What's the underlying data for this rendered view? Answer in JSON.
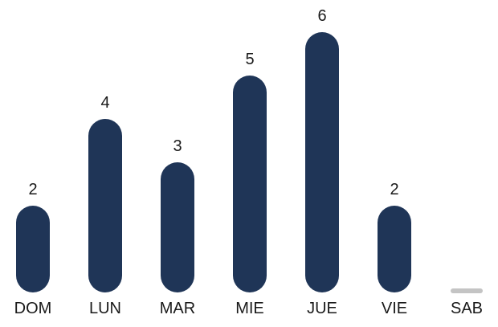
{
  "chart_data": {
    "type": "bar",
    "categories": [
      "DOM",
      "LUN",
      "MAR",
      "MIE",
      "JUE",
      "VIE",
      "SAB"
    ],
    "values": [
      2,
      4,
      3,
      5,
      6,
      2,
      0
    ],
    "value_labels": [
      "2",
      "4",
      "3",
      "5",
      "6",
      "2",
      ""
    ],
    "title": "",
    "xlabel": "",
    "ylabel": "",
    "ylim": [
      0,
      6
    ],
    "grid": false,
    "legend": "none",
    "bar_style": "rounded",
    "colors": {
      "bar": "#1f3557",
      "empty_bar": "#c4c4c4",
      "text": "#1a1a1a"
    }
  }
}
